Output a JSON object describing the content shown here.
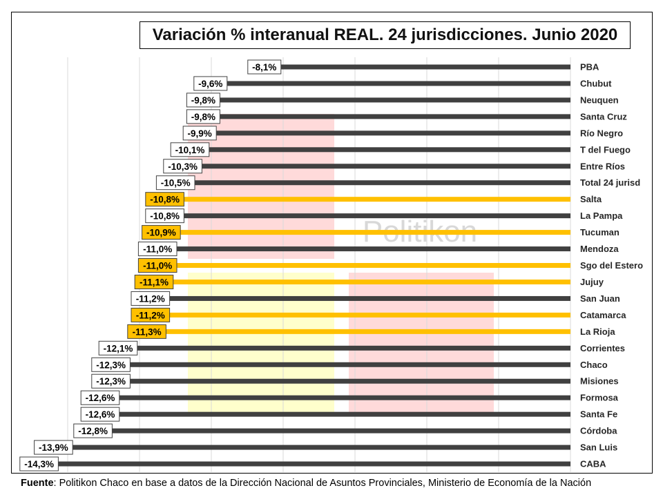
{
  "chart_data": {
    "type": "bar",
    "orientation": "horizontal",
    "title": "Variación % interanual REAL. 24 jurisdicciones. Junio 2020",
    "categories": [
      "PBA",
      "Chubut",
      "Neuquen",
      "Santa Cruz",
      "Río Negro",
      "T del Fuego",
      "Entre Ríos",
      "Total 24 jurisd",
      "Salta",
      "La Pampa",
      "Tucuman",
      "Mendoza",
      "Sgo del Estero",
      "Jujuy",
      "San Juan",
      "Catamarca",
      "La Rioja",
      "Corrientes",
      "Chaco",
      "Misiones",
      "Formosa",
      "Santa Fe",
      "Córdoba",
      "San Luis",
      "CABA"
    ],
    "values": [
      -8.1,
      -9.6,
      -9.8,
      -9.8,
      -9.9,
      -10.1,
      -10.3,
      -10.5,
      -10.8,
      -10.8,
      -10.9,
      -11.0,
      -11.0,
      -11.1,
      -11.2,
      -11.2,
      -11.3,
      -12.1,
      -12.3,
      -12.3,
      -12.6,
      -12.6,
      -12.8,
      -13.9,
      -14.3
    ],
    "labels": [
      "-8,1%",
      "-9,6%",
      "-9,8%",
      "-9,8%",
      "-9,9%",
      "-10,1%",
      "-10,3%",
      "-10,5%",
      "-10,8%",
      "-10,8%",
      "-10,9%",
      "-11,0%",
      "-11,0%",
      "-11,1%",
      "-11,2%",
      "-11,2%",
      "-11,3%",
      "-12,1%",
      "-12,3%",
      "-12,3%",
      "-12,6%",
      "-12,6%",
      "-12,8%",
      "-13,9%",
      "-14,3%"
    ],
    "highlighted": [
      false,
      false,
      false,
      false,
      false,
      false,
      false,
      false,
      true,
      false,
      true,
      false,
      true,
      true,
      false,
      true,
      true,
      false,
      false,
      false,
      false,
      false,
      false,
      false,
      false
    ],
    "xlim": [
      -15.0,
      0
    ],
    "grid": true,
    "watermark": "Politikon",
    "colors": {
      "bar": "#404040",
      "highlight": "#FFC000",
      "grid": "#d9d9d9",
      "label_border": "#404040"
    }
  },
  "footer": {
    "label": "Fuente",
    "text": ": Politikon Chaco en base a datos de la Dirección Nacional de Asuntos Provinciales, Ministerio de Economía de la Nación"
  }
}
